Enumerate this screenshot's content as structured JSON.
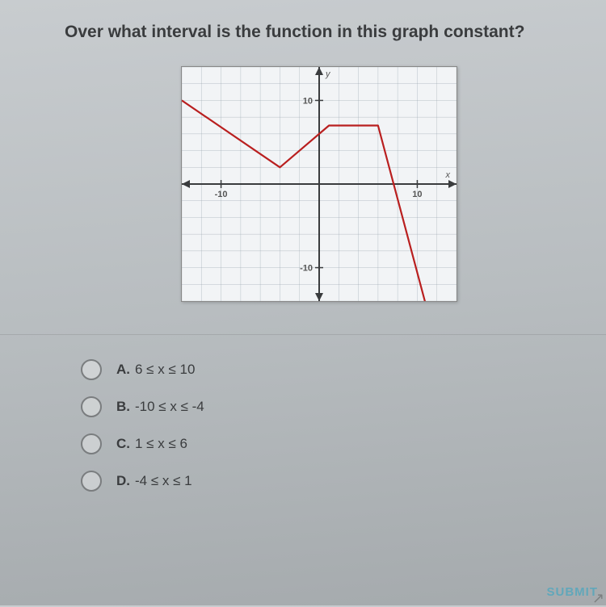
{
  "question": "Over what interval is the function in this graph constant?",
  "graph": {
    "xlim": [
      -14,
      14
    ],
    "ylim": [
      -14,
      14
    ],
    "xticks_major": [
      -10,
      10
    ],
    "yticks_major": [
      -10,
      10
    ],
    "x_tick_labels": {
      "-10": "-10",
      "10": "10"
    },
    "y_tick_labels": {
      "-10": "-10",
      "10": "10"
    },
    "grid_step": 2,
    "grid_color": "#9aa7b0",
    "axis_color": "#3a3c3e",
    "background_color": "#f2f4f6",
    "line_color": "#b91f1f",
    "line_width": 2.2,
    "points": [
      [
        -14,
        10
      ],
      [
        -4,
        2
      ],
      [
        1,
        7
      ],
      [
        6,
        7
      ],
      [
        11,
        -15
      ]
    ],
    "axis_label_x": "x",
    "axis_label_y": "y"
  },
  "options": [
    {
      "letter": "A.",
      "text": "6 ≤ x ≤ 10"
    },
    {
      "letter": "B.",
      "text": "-10 ≤ x ≤ -4"
    },
    {
      "letter": "C.",
      "text": "1 ≤ x ≤ 6"
    },
    {
      "letter": "D.",
      "text": "-4 ≤ x ≤ 1"
    }
  ],
  "submit_label": "SUBMIT"
}
